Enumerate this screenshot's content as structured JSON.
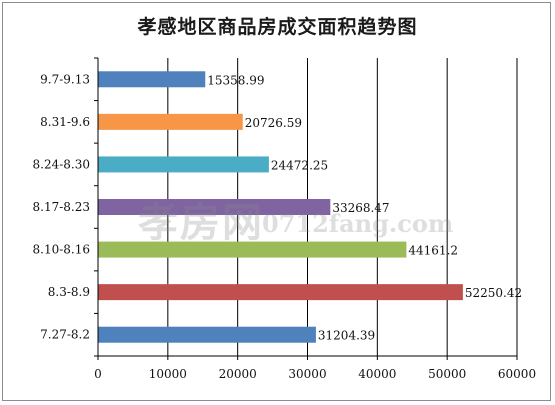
{
  "chart_data": {
    "type": "bar",
    "orientation": "horizontal",
    "title": "孝感地区商品房成交面积趋势图",
    "categories": [
      "9.7-9.13",
      "8.31-9.6",
      "8.24-8.30",
      "8.17-8.23",
      "8.10-8.16",
      "8.3-8.9",
      "7.27-8.2"
    ],
    "values": [
      15358.99,
      20726.59,
      24472.25,
      33268.47,
      44161.2,
      52250.42,
      31204.39
    ],
    "value_labels": [
      "15358.99",
      "20726.59",
      "24472.25",
      "33268.47",
      "44161.2",
      "52250.42",
      "31204.39"
    ],
    "colors": [
      "#4f81bd",
      "#f79646",
      "#4bacc6",
      "#8064a2",
      "#9bbb59",
      "#c0504d",
      "#4f81bd"
    ],
    "xlim": [
      0,
      60000
    ],
    "xticks": [
      0,
      10000,
      20000,
      30000,
      40000,
      50000,
      60000
    ],
    "xtick_labels": [
      "0",
      "10000",
      "20000",
      "30000",
      "40000",
      "50000",
      "60000"
    ],
    "grid": true,
    "legend": "none"
  },
  "watermark": {
    "chinese": "孝房网",
    "site": "0712fang.com"
  }
}
